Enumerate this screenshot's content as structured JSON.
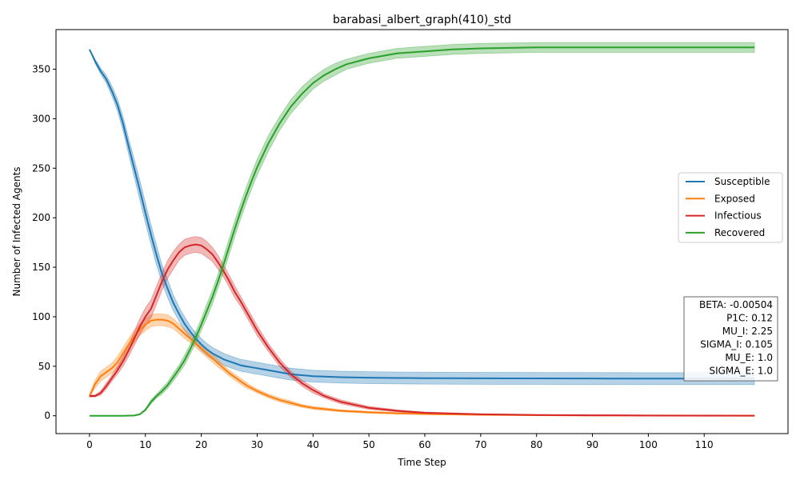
{
  "chart_data": {
    "type": "line",
    "title": "barabasi_albert_graph(410)_std",
    "xlabel": "Time Step",
    "ylabel": "Number of Infected Agents",
    "xlim": [
      -6,
      125
    ],
    "ylim": [
      -18,
      390
    ],
    "xticks": [
      0,
      10,
      20,
      30,
      40,
      50,
      60,
      70,
      80,
      90,
      100,
      110
    ],
    "yticks": [
      0,
      50,
      100,
      150,
      200,
      250,
      300,
      350
    ],
    "grid": false,
    "legend_position": "center-right",
    "series": [
      {
        "name": "Susceptible",
        "color": "#1f77b4",
        "x": [
          0,
          1,
          2,
          3,
          4,
          5,
          6,
          7,
          8,
          9,
          10,
          11,
          12,
          13,
          14,
          15,
          16,
          17,
          18,
          19,
          20,
          21,
          22,
          23,
          24,
          25,
          26,
          27,
          28,
          29,
          30,
          32,
          34,
          36,
          38,
          40,
          45,
          50,
          55,
          60,
          70,
          80,
          90,
          100,
          110,
          119
        ],
        "y": [
          370,
          358,
          348,
          340,
          328,
          314,
          295,
          272,
          250,
          228,
          205,
          183,
          162,
          143,
          128,
          114,
          103,
          93,
          85,
          78,
          72,
          67,
          63,
          60,
          57,
          55,
          53,
          51,
          50,
          49,
          48,
          46,
          44,
          42,
          41,
          40,
          39,
          38.5,
          38.2,
          38,
          37.8,
          37.7,
          37.6,
          37.5,
          37.5,
          37.5
        ],
        "std": [
          0,
          2,
          3,
          4,
          5,
          6,
          7,
          8,
          9,
          10,
          10,
          10,
          10,
          9,
          9,
          8,
          7,
          7,
          6,
          6,
          6,
          6,
          6,
          6,
          6,
          6,
          6,
          6,
          6,
          6,
          6,
          6,
          6,
          6,
          6,
          6,
          6,
          6,
          6,
          6,
          6,
          6,
          6,
          6,
          6,
          6
        ]
      },
      {
        "name": "Exposed",
        "color": "#ff7f0e",
        "x": [
          0,
          1,
          2,
          3,
          4,
          5,
          6,
          7,
          8,
          9,
          10,
          11,
          12,
          13,
          14,
          15,
          16,
          17,
          18,
          19,
          20,
          21,
          22,
          23,
          24,
          25,
          26,
          27,
          28,
          29,
          30,
          32,
          34,
          36,
          38,
          40,
          45,
          50,
          55,
          60,
          70,
          80,
          90,
          100,
          110,
          119
        ],
        "y": [
          20,
          32,
          40,
          44,
          48,
          54,
          63,
          72,
          80,
          87,
          92,
          96,
          97,
          97,
          96,
          93,
          88,
          83,
          78,
          73,
          68,
          63,
          58,
          53,
          48,
          43,
          39,
          35,
          31,
          28,
          25,
          20,
          16,
          13,
          10,
          8,
          5,
          3.5,
          2.5,
          1.8,
          1,
          0.6,
          0.3,
          0.2,
          0.1,
          0.1
        ],
        "std": [
          1,
          4,
          5,
          5,
          5,
          6,
          6,
          6,
          6,
          6,
          6,
          6,
          6,
          6,
          6,
          5,
          5,
          5,
          4,
          4,
          4,
          4,
          4,
          4,
          3,
          3,
          3,
          3,
          3,
          2,
          2,
          2,
          2,
          2,
          1.5,
          1.5,
          1,
          1,
          0.8,
          0.6,
          0.4,
          0.3,
          0.2,
          0.2,
          0.1,
          0.1
        ]
      },
      {
        "name": "Infectious",
        "color": "#d62728",
        "x": [
          0,
          1,
          2,
          3,
          4,
          5,
          6,
          7,
          8,
          9,
          10,
          11,
          12,
          13,
          14,
          15,
          16,
          17,
          18,
          19,
          20,
          21,
          22,
          23,
          24,
          25,
          26,
          27,
          28,
          29,
          30,
          32,
          34,
          36,
          38,
          40,
          42,
          45,
          50,
          55,
          60,
          70,
          80,
          90,
          100,
          110,
          119
        ],
        "y": [
          20,
          20,
          23,
          30,
          38,
          46,
          55,
          66,
          78,
          90,
          100,
          108,
          122,
          136,
          148,
          157,
          165,
          170,
          172,
          173,
          172,
          168,
          163,
          155,
          146,
          136,
          125,
          116,
          106,
          96,
          86,
          69,
          54,
          42,
          33,
          26,
          20,
          14,
          8,
          5,
          3,
          1.5,
          0.8,
          0.5,
          0.3,
          0.2,
          0.1
        ],
        "std": [
          1,
          1,
          2,
          3,
          3,
          4,
          5,
          6,
          7,
          8,
          9,
          9,
          9,
          9,
          9,
          9,
          8,
          8,
          8,
          8,
          8,
          8,
          7,
          7,
          6,
          6,
          6,
          5,
          5,
          5,
          5,
          4,
          4,
          3,
          3,
          3,
          2,
          2,
          1.5,
          1,
          0.8,
          0.5,
          0.3,
          0.2,
          0.2,
          0.1,
          0.1
        ]
      },
      {
        "name": "Recovered",
        "color": "#2ca02c",
        "x": [
          0,
          2,
          4,
          6,
          8,
          9,
          10,
          11,
          12,
          13,
          14,
          15,
          16,
          17,
          18,
          19,
          20,
          21,
          22,
          23,
          24,
          25,
          26,
          27,
          28,
          29,
          30,
          32,
          34,
          36,
          38,
          40,
          42,
          44,
          46,
          48,
          50,
          55,
          60,
          65,
          70,
          80,
          90,
          100,
          110,
          119
        ],
        "y": [
          0,
          0,
          0,
          0,
          0.3,
          1.5,
          6,
          14,
          20,
          25,
          31,
          39,
          47,
          56,
          67,
          79,
          92,
          106,
          120,
          136,
          153,
          171,
          189,
          206,
          222,
          237,
          251,
          275,
          295,
          312,
          325,
          336,
          344,
          350,
          355,
          358,
          361,
          366,
          368,
          370,
          371,
          372,
          372,
          372,
          372,
          372
        ],
        "std": [
          0,
          0,
          0,
          0,
          0.2,
          0.5,
          1,
          2,
          2,
          3,
          3,
          4,
          4,
          5,
          5,
          6,
          6,
          7,
          7,
          7,
          8,
          8,
          8,
          8,
          8,
          8,
          8,
          8,
          7,
          7,
          7,
          6,
          6,
          6,
          5,
          5,
          5,
          5,
          5,
          5,
          5,
          5,
          5,
          5,
          5,
          5
        ]
      }
    ],
    "legend": [
      "Susceptible",
      "Exposed",
      "Infectious",
      "Recovered"
    ],
    "parameters_box": [
      "BETA: -0.00504",
      "P1C: 0.12",
      "MU_I: 2.25",
      "SIGMA_I: 0.105",
      "MU_E: 1.0",
      "SIGMA_E: 1.0"
    ]
  }
}
